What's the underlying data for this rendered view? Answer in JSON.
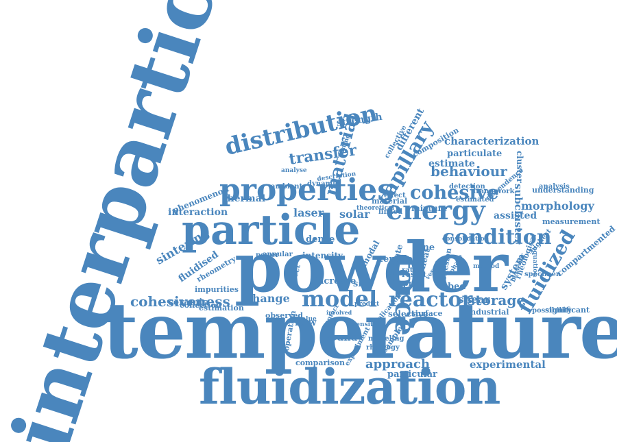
{
  "colors": {
    "word": "#4a86bd",
    "background": "#ffffff"
  },
  "words": [
    "interparticle",
    "temperature",
    "powder",
    "fluidization",
    "particle",
    "properties",
    "force",
    "energy",
    "distribution",
    "model",
    "reactor",
    "condition",
    "capillary",
    "cohesive",
    "material",
    "fluidized",
    "cohesiveness",
    "storage",
    "behaviour",
    "approach",
    "transfer",
    "experimental",
    "characterization",
    "morphology",
    "change",
    "sintering",
    "fluidised",
    "thermal",
    "assisted",
    "shear",
    "system",
    "subcluster",
    "strength",
    "phenomenon",
    "interaction",
    "laser",
    "solar",
    "estimate",
    "different",
    "flow",
    "ceramic",
    "sound",
    "particular",
    "bed",
    "significant",
    "compartmented",
    "rheological",
    "understanding",
    "cluster",
    "measurement",
    "mixture",
    "material_b",
    "collective",
    "composition",
    "particulate",
    "fine",
    "dense",
    "intensity",
    "tensile",
    "bimodal",
    "heat",
    "size",
    "result",
    "proc",
    "rate",
    "evaluate",
    "increase",
    "impurities",
    "rheometry",
    "selective",
    "surface",
    "industrial",
    "observed",
    "sample",
    "application",
    "modeling",
    "rheology",
    "comparison",
    "operation",
    "experiment",
    "power",
    "annular",
    "direct",
    "estimation",
    "collection",
    "cohesion",
    "possibility",
    "analysis",
    "dependence",
    "framework",
    "detection",
    "estimated",
    "analyse",
    "ambient",
    "dynamic",
    "description",
    "testing",
    "effect",
    "linked",
    "theoretical",
    "consolidation",
    "equation",
    "highest",
    "specimen",
    "behavior",
    "value",
    "predict",
    "involved",
    "density",
    "contact",
    "vessel",
    "phase",
    "method"
  ],
  "words_display": {
    "material_b": "material"
  }
}
